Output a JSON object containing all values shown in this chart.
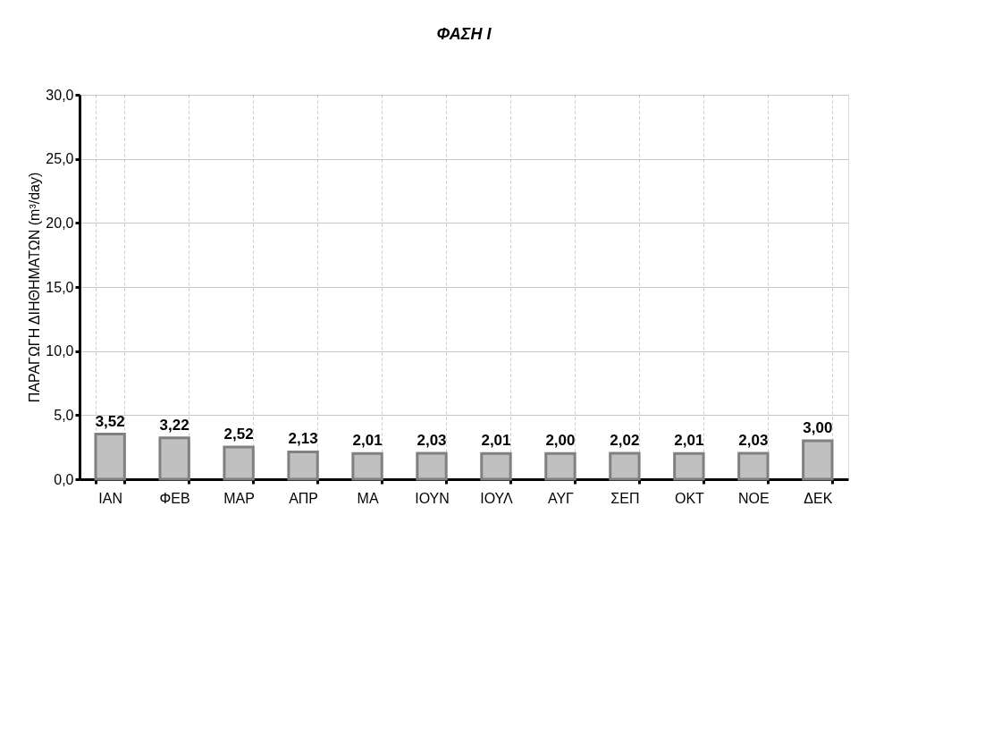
{
  "chart_data": {
    "type": "bar",
    "title": "ΦΑΣΗ Ι",
    "ylabel": "ΠΑΡΑΓΩΓΗ ΔΙΗΘΗΜΑΤΩΝ (m³/day)",
    "categories": [
      "ΙΑΝ",
      "ΦΕΒ",
      "ΜΑΡ",
      "ΑΠΡ",
      "ΜΑ",
      "ΙΟΥΝ",
      "ΙΟΥΛ",
      "ΑΥΓ",
      "ΣΕΠ",
      "ΟΚΤ",
      "ΝΟΕ",
      "ΔΕΚ"
    ],
    "values": [
      3.52,
      3.22,
      2.52,
      2.13,
      2.01,
      2.03,
      2.01,
      2.0,
      2.02,
      2.01,
      2.03,
      3.0
    ],
    "value_labels": [
      "3,52",
      "3,22",
      "2,52",
      "2,13",
      "2,01",
      "2,03",
      "2,01",
      "2,00",
      "2,02",
      "2,01",
      "2,03",
      "3,00"
    ],
    "color": "#c0c0c0",
    "ylim": [
      0,
      30
    ],
    "yticks": [
      {
        "value": 0,
        "label": "0,0"
      },
      {
        "value": 5,
        "label": "5,0"
      },
      {
        "value": 10,
        "label": "10,0"
      },
      {
        "value": 15,
        "label": "15,0"
      },
      {
        "value": 20,
        "label": "20,0"
      },
      {
        "value": 25,
        "label": "25,0"
      },
      {
        "value": 30,
        "label": "30,0"
      }
    ],
    "grid": true
  }
}
